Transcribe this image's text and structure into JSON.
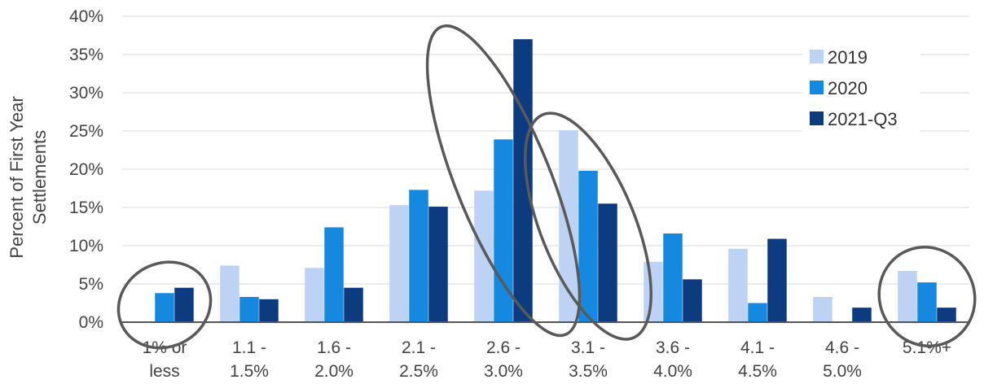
{
  "chart_data": {
    "type": "bar",
    "ylabel": [
      "Percent of First Year",
      "Settlements"
    ],
    "ylim": [
      0,
      40
    ],
    "yticks": [
      "0%",
      "5%",
      "10%",
      "15%",
      "20%",
      "25%",
      "30%",
      "35%",
      "40%"
    ],
    "categories": [
      [
        "1% or",
        "less"
      ],
      [
        "1.1 -",
        "1.5%"
      ],
      [
        "1.6 -",
        "2.0%"
      ],
      [
        "2.1 -",
        "2.5%"
      ],
      [
        "2.6 -",
        "3.0%"
      ],
      [
        "3.1 -",
        "3.5%"
      ],
      [
        "3.6 -",
        "4.0%"
      ],
      [
        "4.1 -",
        "4.5%"
      ],
      [
        "4.6 -",
        "5.0%"
      ],
      [
        "5.1%+"
      ]
    ],
    "series": [
      {
        "name": "2019",
        "color": "#bcd3f5",
        "values": [
          0,
          7.4,
          7.1,
          15.3,
          17.2,
          25.1,
          7.9,
          9.6,
          3.3,
          6.7
        ]
      },
      {
        "name": "2020",
        "color": "#1589e0",
        "values": [
          3.8,
          3.3,
          12.4,
          17.3,
          23.9,
          19.8,
          11.6,
          2.5,
          0,
          5.2
        ]
      },
      {
        "name": "2021-Q3",
        "color": "#0d3b80",
        "values": [
          4.5,
          3.0,
          4.5,
          15.1,
          37.0,
          15.5,
          5.6,
          10.9,
          1.9,
          1.9
        ]
      }
    ],
    "highlighted_groups": [
      0,
      4,
      5,
      9
    ],
    "grid": true,
    "legend": "top-right"
  }
}
